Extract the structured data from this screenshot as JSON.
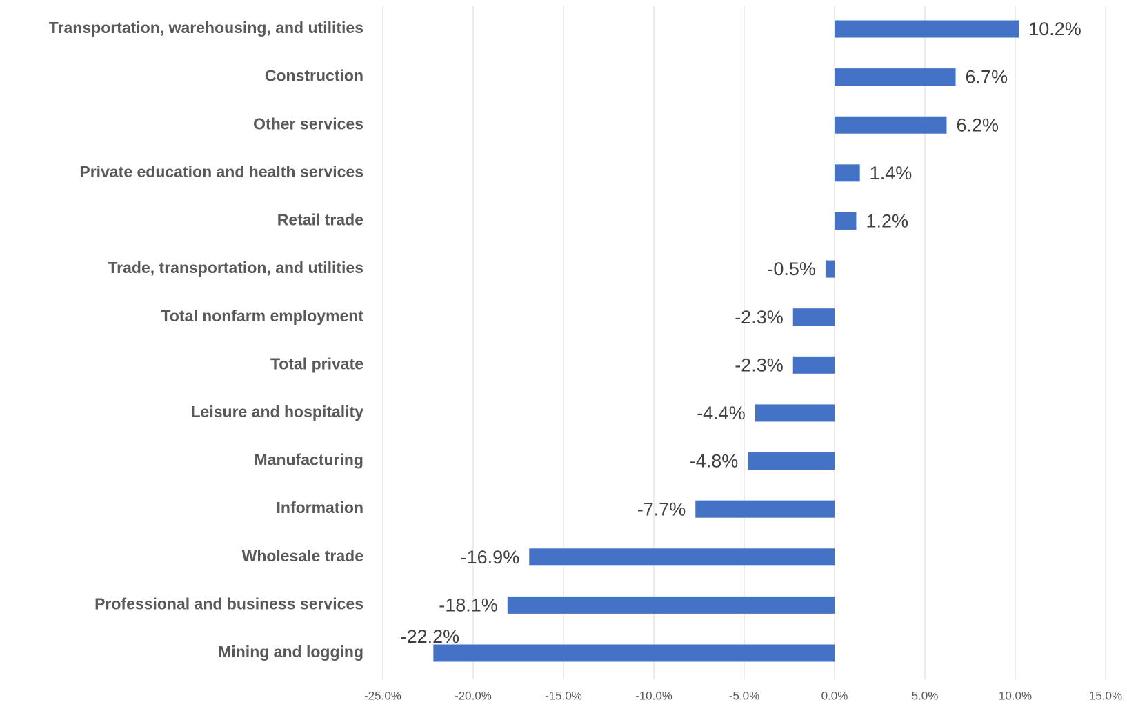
{
  "chart_data": {
    "type": "bar",
    "orientation": "horizontal",
    "categories": [
      "Transportation, warehousing, and utilities",
      "Construction",
      "Other services",
      "Private education and health services",
      "Retail trade",
      "Trade, transportation, and utilities",
      "Total nonfarm employment",
      "Total private",
      "Leisure and hospitality",
      "Manufacturing",
      "Information",
      "Wholesale trade",
      "Professional and business services",
      "Mining and logging"
    ],
    "values": [
      10.2,
      6.7,
      6.2,
      1.4,
      1.2,
      -0.5,
      -2.3,
      -2.3,
      -4.4,
      -4.8,
      -7.7,
      -16.9,
      -18.1,
      -22.2
    ],
    "value_labels": [
      "10.2%",
      "6.7%",
      "6.2%",
      "1.4%",
      "1.2%",
      "-0.5%",
      "-2.3%",
      "-2.3%",
      "-4.4%",
      "-4.8%",
      "-7.7%",
      "-16.9%",
      "-18.1%",
      "-22.2%"
    ],
    "color": "#4472c4",
    "xlim": [
      -25,
      15
    ],
    "xticks": [
      {
        "value": -25,
        "label": "-25.0%"
      },
      {
        "value": -20,
        "label": "-20.0%"
      },
      {
        "value": -15,
        "label": "-15.0%"
      },
      {
        "value": -10,
        "label": "-10.0%"
      },
      {
        "value": -5,
        "label": "-5.0%"
      },
      {
        "value": 0,
        "label": "0.0%"
      },
      {
        "value": 5,
        "label": "5.0%"
      },
      {
        "value": 10,
        "label": "10.0%"
      },
      {
        "value": 15,
        "label": "15.0%"
      }
    ],
    "grid": true
  }
}
